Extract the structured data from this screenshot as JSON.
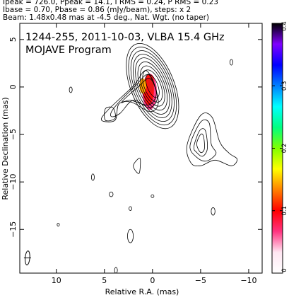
{
  "header": {
    "line1": "Ipeak = 726.0, Ppeak = 14.1, I RMS = 0.24, P RMS = 0.23",
    "line2": "Ibase = 0.70, Pbase = 0.86 (mJy/beam), steps: x 2",
    "line3": "Beam: 1.48x0.48 mas at -4.5 deg., Nat. Wgt. (no taper)"
  },
  "chart_data": {
    "type": "heatmap",
    "title": "1244-255, 2011-10-03, VLBA 15.4 GHz",
    "subtitle": "MOJAVE Program",
    "xlabel": "Relative R.A. (mas)",
    "ylabel": "Relative Declination (mas)",
    "xlim": [
      13.8,
      -11.4
    ],
    "ylim": [
      -19.6,
      6.7
    ],
    "xticks": [
      10,
      5,
      0,
      -5,
      -10
    ],
    "xtick_labels": [
      "10",
      "5",
      "0",
      "−5",
      "−10"
    ],
    "yticks": [
      5,
      0,
      -5,
      -10,
      -15
    ],
    "ytick_labels": [
      "5",
      "0",
      "−5",
      "−10",
      "−15"
    ],
    "colorbar": {
      "range": [
        0,
        0.4
      ],
      "ticks": [
        0,
        0.1,
        0.2,
        0.3,
        0.4
      ],
      "tick_labels": [
        "0",
        "0.1",
        "0.2",
        "0.3",
        "0.4"
      ],
      "colors": [
        "#ffffff",
        "#ffe6f2",
        "#ff3380",
        "#ff0000",
        "#ff8000",
        "#ffff00",
        "#80ff00",
        "#00ff80",
        "#00ffff",
        "#0080ff",
        "#0000ff",
        "#8000ff",
        "#000000"
      ]
    },
    "core": {
      "x": 0.0,
      "y": 0.1
    },
    "core_contours_mas": [
      [
        0.55,
        1.3
      ],
      [
        0.85,
        1.8
      ],
      [
        1.05,
        2.25
      ],
      [
        1.25,
        2.7
      ],
      [
        1.45,
        3.15
      ],
      [
        1.65,
        3.55
      ],
      [
        1.85,
        3.95
      ],
      [
        2.05,
        4.35
      ],
      [
        2.25,
        4.75
      ]
    ],
    "jet_contours": [
      [
        [
          0.6,
          1.7
        ],
        [
          2.0,
          0.1
        ],
        [
          4.6,
          -2.4
        ],
        [
          5.3,
          -3.5
        ],
        [
          3.9,
          -3.5
        ],
        [
          3.5,
          -1.8
        ],
        [
          2.2,
          -1.6
        ],
        [
          0.2,
          -2.6
        ],
        [
          -0.6,
          -1.4
        ]
      ],
      [
        [
          0.4,
          1.3
        ],
        [
          1.8,
          0.1
        ],
        [
          4.0,
          -2.2
        ],
        [
          4.3,
          -3.1
        ],
        [
          3.4,
          -2.8
        ],
        [
          2.0,
          -1.4
        ],
        [
          0.3,
          -2.2
        ],
        [
          -0.5,
          -1.0
        ]
      ],
      [
        [
          0.3,
          0.9
        ],
        [
          1.5,
          0.0
        ],
        [
          3.2,
          -1.6
        ],
        [
          2.3,
          -1.4
        ],
        [
          0.4,
          -1.9
        ],
        [
          -0.4,
          -0.7
        ]
      ],
      [
        [
          3.9,
          -3.3
        ],
        [
          4.9,
          -3.5
        ],
        [
          4.9,
          -2.3
        ],
        [
          4.1,
          -2.2
        ]
      ],
      [
        [
          -3.6,
          -6.1
        ],
        [
          -5.0,
          -3.0
        ],
        [
          -6.2,
          -3.2
        ],
        [
          -7.0,
          -5.8
        ],
        [
          -8.0,
          -7.0
        ],
        [
          -8.8,
          -7.6
        ],
        [
          -8.2,
          -8.3
        ],
        [
          -6.5,
          -7.7
        ],
        [
          -5.0,
          -8.3
        ],
        [
          -4.0,
          -8.0
        ]
      ],
      [
        [
          -3.9,
          -6.2
        ],
        [
          -5.0,
          -3.7
        ],
        [
          -5.9,
          -3.8
        ],
        [
          -6.1,
          -6.0
        ],
        [
          -6.6,
          -7.0
        ],
        [
          -5.6,
          -7.8
        ],
        [
          -4.6,
          -7.4
        ]
      ],
      [
        [
          -4.3,
          -6.3
        ],
        [
          -4.9,
          -4.6
        ],
        [
          -5.5,
          -4.6
        ],
        [
          -5.7,
          -6.5
        ],
        [
          -5.2,
          -7.3
        ],
        [
          -4.6,
          -6.9
        ]
      ],
      [
        [
          -4.6,
          -6.0
        ],
        [
          -5.0,
          -5.0
        ],
        [
          -5.3,
          -5.2
        ],
        [
          -5.4,
          -6.5
        ],
        [
          -5.0,
          -6.9
        ]
      ],
      [
        [
          1.4,
          -9.1
        ],
        [
          2.0,
          -8.3
        ],
        [
          1.3,
          -7.5
        ]
      ]
    ],
    "small_islands": [
      {
        "x": 8.5,
        "y": -0.3,
        "rx": 0.15,
        "ry": 0.3
      },
      {
        "x": 6.2,
        "y": -9.5,
        "rx": 0.15,
        "ry": 0.35
      },
      {
        "x": 4.3,
        "y": -11.3,
        "rx": 0.2,
        "ry": 0.25
      },
      {
        "x": 2.3,
        "y": -12.8,
        "rx": 0.15,
        "ry": 0.2
      },
      {
        "x": 0.0,
        "y": -11.5,
        "rx": 0.15,
        "ry": 0.15
      },
      {
        "x": 2.3,
        "y": -15.7,
        "rx": 0.3,
        "ry": 0.7
      },
      {
        "x": -6.3,
        "y": -13.1,
        "rx": 0.2,
        "ry": 0.4
      },
      {
        "x": -8.2,
        "y": 2.6,
        "rx": 0.15,
        "ry": 0.3
      },
      {
        "x": 9.8,
        "y": -14.5,
        "rx": 0.12,
        "ry": 0.15
      },
      {
        "x": 3.8,
        "y": -19.3,
        "rx": 0.15,
        "ry": 0.3
      }
    ],
    "beam": {
      "x": 13.0,
      "y": -18.0,
      "major": 1.48,
      "minor": 0.48,
      "pa_deg": -4.5
    }
  }
}
